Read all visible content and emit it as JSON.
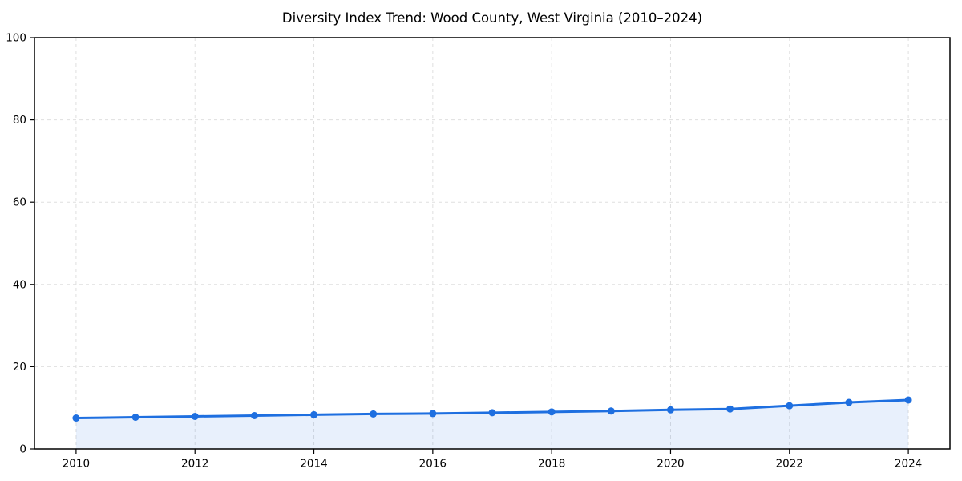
{
  "chart_data": {
    "type": "line",
    "title": "Diversity Index Trend: Wood County, West Virginia (2010–2024)",
    "x": [
      2010,
      2011,
      2012,
      2013,
      2014,
      2015,
      2016,
      2017,
      2018,
      2019,
      2020,
      2021,
      2022,
      2023,
      2024
    ],
    "series": [
      {
        "name": "Diversity Index",
        "values": [
          7.5,
          7.7,
          7.9,
          8.1,
          8.3,
          8.5,
          8.6,
          8.8,
          9.0,
          9.2,
          9.5,
          9.7,
          10.5,
          11.3,
          11.9
        ]
      }
    ],
    "xlabel": "",
    "ylabel": "",
    "xlim": [
      2009.3,
      2024.7
    ],
    "ylim": [
      0,
      100
    ],
    "x_ticks": [
      2010,
      2012,
      2014,
      2016,
      2018,
      2020,
      2022,
      2024
    ],
    "x_tick_labels": [
      "2010",
      "2012",
      "2014",
      "2016",
      "2018",
      "2020",
      "2022",
      "2024"
    ],
    "y_ticks": [
      0,
      20,
      40,
      60,
      80,
      100
    ],
    "y_tick_labels": [
      "0",
      "20",
      "40",
      "60",
      "80",
      "100"
    ],
    "grid": true,
    "grid_style": "dashed",
    "legend": false,
    "marker": "circle",
    "colors": {
      "line": "#1e6fe0",
      "marker": "#1e6fe0",
      "fill": "rgba(30, 111, 224, 0.10)",
      "grid": "#dfdfdf",
      "axis": "#000000",
      "text": "#000000",
      "background": "#ffffff"
    }
  }
}
